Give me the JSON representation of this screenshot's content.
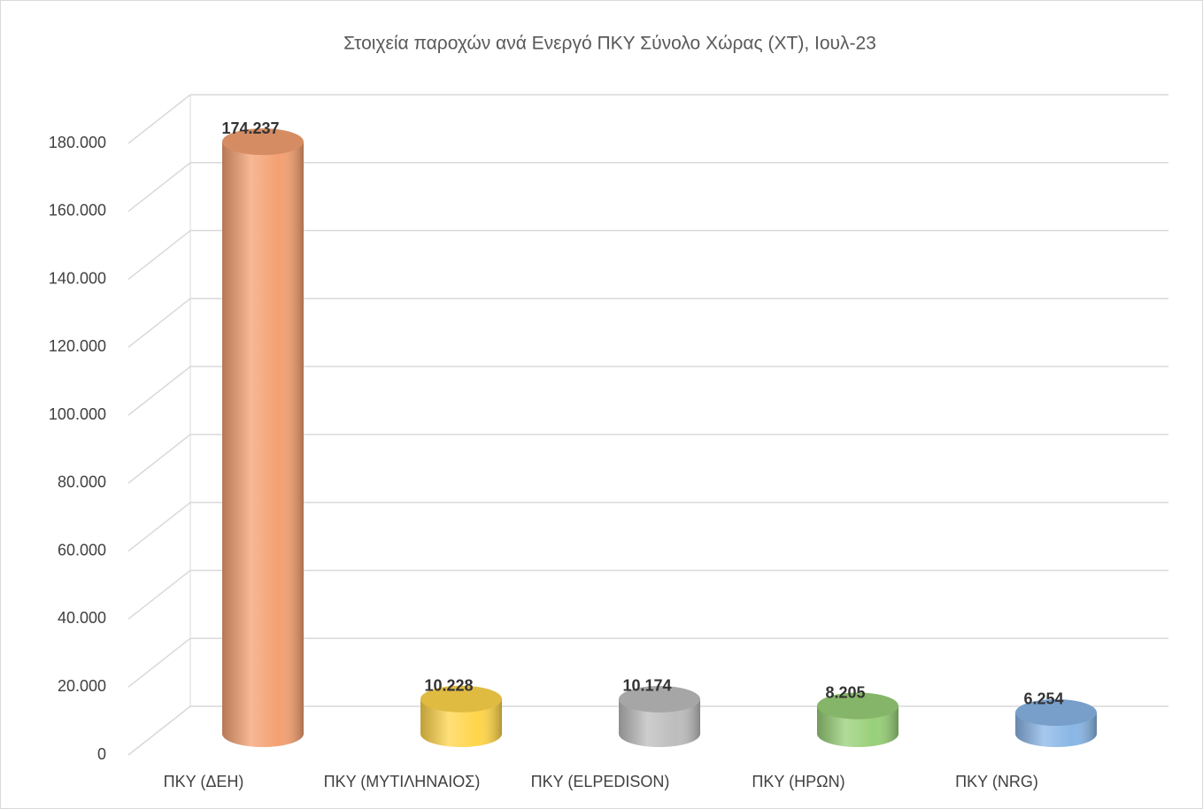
{
  "chart_data": {
    "type": "bar3d",
    "title": "Στοιχεία παροχών ανά Ενεργό ΠΚΥ Σύνολο Χώρας (ΧΤ), Ιουλ-23",
    "categories": [
      "ΠΚΥ (ΔΕΗ)",
      "ΠΚΥ (ΜΥΤΙΛΗΝΑΙΟΣ)",
      "ΠΚΥ (ELPEDISON)",
      "ΠΚΥ (ΗΡΩΝ)",
      "ΠΚΥ (NRG)"
    ],
    "values": [
      174237,
      10228,
      10174,
      8205,
      6254
    ],
    "value_labels": [
      "174.237",
      "10.228",
      "10.174",
      "8.205",
      "6.254"
    ],
    "colors": [
      "#f4a071",
      "#ffd54a",
      "#bdbdbd",
      "#98cf78",
      "#89b6e6"
    ],
    "ylim": [
      0,
      180000
    ],
    "yticks": [
      0,
      {
        "value": 20000,
        "label": "20.000"
      },
      {
        "value": 40000,
        "label": "40.000"
      },
      {
        "value": 60000,
        "label": "60.000"
      },
      {
        "value": 80000,
        "label": "80.000"
      },
      {
        "value": 100000,
        "label": "100.000"
      },
      {
        "value": 120000,
        "label": "120.000"
      },
      {
        "value": 140000,
        "label": "140.000"
      },
      {
        "value": 160000,
        "label": "160.000"
      },
      {
        "value": 180000,
        "label": "180.000"
      }
    ],
    "grid": true
  }
}
